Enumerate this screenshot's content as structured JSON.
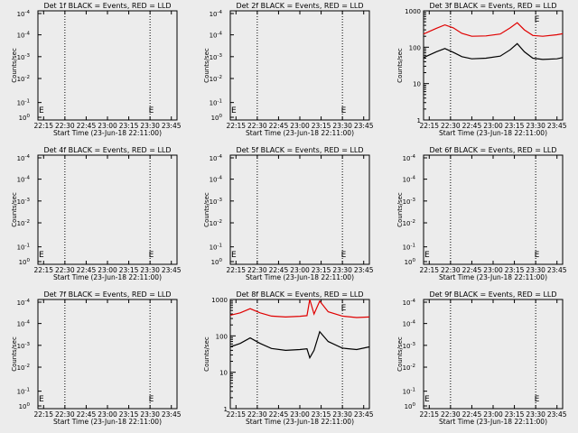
{
  "figure": {
    "background": "#ececec",
    "axis_color": "#000000",
    "events_color": "#000000",
    "lld_color": "#e00000",
    "xlabel": "Start Time (23-Jun-18 22:11:00)",
    "ylabel": "Counts/sec",
    "xtick_labels": [
      "22:15",
      "22:30",
      "22:45",
      "23:00",
      "23:15",
      "23:30",
      "23:45"
    ],
    "ylim_text": {
      "lo_left": "10",
      "lo_right": "0",
      "hi_left": "10",
      "hi_right": "4",
      "hi_neg_left": "10",
      "hi_neg_right": "-4"
    },
    "legend_note": "E"
  },
  "chart_data": [
    {
      "type": "line",
      "title": "Det 1f BLACK = Events, RED = LLD",
      "y_scale": "log",
      "ylim": [
        1,
        10000
      ],
      "yticks": [
        "10^0",
        "10^-1",
        "10^-2",
        "10^-3",
        "10^-4",
        "10^-4"
      ],
      "series": [],
      "markers": [
        "E",
        "E"
      ]
    },
    {
      "type": "line",
      "title": "Det 2f BLACK = Events, RED = LLD",
      "y_scale": "log",
      "yticks": [
        "10^0",
        "10^-1",
        "10^-2",
        "10^-3",
        "10^-4",
        "10^-4"
      ],
      "series": [],
      "markers": [
        "E",
        "E"
      ]
    },
    {
      "type": "line",
      "title": "Det 3f BLACK = Events, RED = LLD",
      "y_scale": "log",
      "ylim": [
        1,
        1000
      ],
      "yticks": [
        "1",
        "10",
        "100",
        "1000"
      ],
      "series": [
        {
          "name": "LLD",
          "color": "#e00000",
          "x": [
            "22:11",
            "22:20",
            "22:26",
            "22:32",
            "22:38",
            "22:45",
            "22:55",
            "23:05",
            "23:12",
            "23:17",
            "23:22",
            "23:28",
            "23:35",
            "23:45",
            "23:49"
          ],
          "y": [
            230,
            330,
            410,
            340,
            240,
            200,
            205,
            230,
            340,
            470,
            300,
            210,
            200,
            220,
            235
          ]
        },
        {
          "name": "Events",
          "color": "#000000",
          "x": [
            "22:11",
            "22:20",
            "22:26",
            "22:32",
            "22:38",
            "22:45",
            "22:55",
            "23:05",
            "23:12",
            "23:17",
            "23:22",
            "23:28",
            "23:35",
            "23:45",
            "23:49"
          ],
          "y": [
            52,
            75,
            92,
            72,
            55,
            48,
            50,
            57,
            85,
            125,
            75,
            50,
            46,
            48,
            52
          ]
        }
      ],
      "markers": [
        "E"
      ]
    },
    {
      "type": "line",
      "title": "Det 4f BLACK = Events, RED = LLD",
      "y_scale": "log",
      "yticks": [
        "10^0",
        "10^-1",
        "10^-2",
        "10^-3",
        "10^-4",
        "10^-4"
      ],
      "series": [],
      "markers": [
        "E",
        "E"
      ]
    },
    {
      "type": "line",
      "title": "Det 5f BLACK = Events, RED = LLD",
      "y_scale": "log",
      "yticks": [
        "10^0",
        "10^-1",
        "10^-2",
        "10^-3",
        "10^-4",
        "10^-4"
      ],
      "series": [],
      "markers": [
        "E",
        "E"
      ]
    },
    {
      "type": "line",
      "title": "Det 6f BLACK = Events, RED = LLD",
      "y_scale": "log",
      "yticks": [
        "10^0",
        "10^-1",
        "10^-2",
        "10^-3",
        "10^-4",
        "10^-4"
      ],
      "series": [],
      "markers": [
        "E",
        "E"
      ]
    },
    {
      "type": "line",
      "title": "Det 7f BLACK = Events, RED = LLD",
      "y_scale": "log",
      "yticks": [
        "10^0",
        "10^-1",
        "10^-2",
        "10^-3",
        "10^-4",
        "10^-4"
      ],
      "series": [],
      "markers": [
        "E",
        "E"
      ]
    },
    {
      "type": "line",
      "title": "Det 8f BLACK = Events, RED = LLD",
      "y_scale": "log",
      "ylim": [
        1,
        1000
      ],
      "yticks": [
        "1",
        "10",
        "100",
        "1000"
      ],
      "series": [
        {
          "name": "LLD",
          "color": "#e00000",
          "x": [
            "22:11",
            "22:18",
            "22:25",
            "22:32",
            "22:40",
            "22:50",
            "23:00",
            "23:05",
            "23:07",
            "23:10",
            "23:14",
            "23:20",
            "23:30",
            "23:40",
            "23:49"
          ],
          "y": [
            370,
            430,
            560,
            430,
            350,
            330,
            345,
            360,
            1000,
            400,
            900,
            460,
            350,
            320,
            330
          ]
        },
        {
          "name": "Events",
          "color": "#000000",
          "x": [
            "22:11",
            "22:18",
            "22:25",
            "22:32",
            "22:40",
            "22:50",
            "23:00",
            "23:05",
            "23:07",
            "23:10",
            "23:14",
            "23:20",
            "23:30",
            "23:40",
            "23:49"
          ],
          "y": [
            50,
            62,
            88,
            62,
            45,
            40,
            42,
            44,
            25,
            40,
            130,
            70,
            46,
            42,
            50
          ]
        }
      ],
      "markers": [
        "E"
      ]
    },
    {
      "type": "line",
      "title": "Det 9f BLACK = Events, RED = LLD",
      "y_scale": "log",
      "yticks": [
        "10^0",
        "10^-1",
        "10^-2",
        "10^-3",
        "10^-4",
        "10^-4"
      ],
      "series": [],
      "markers": [
        "E",
        "E"
      ]
    }
  ]
}
